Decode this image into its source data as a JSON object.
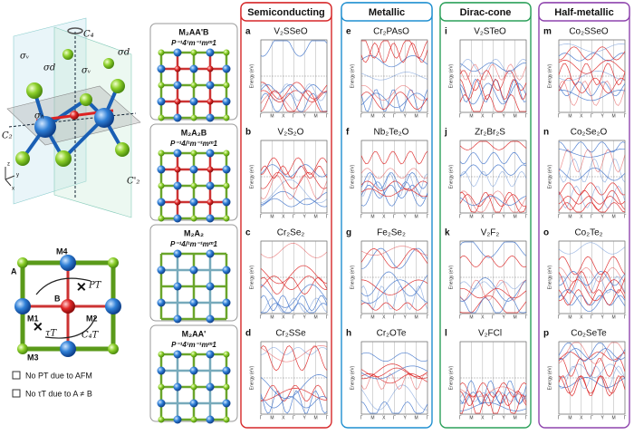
{
  "columns": [
    "Semiconducting",
    "Metallic",
    "Dirac-cone",
    "Half-metallic"
  ],
  "panels": [
    {
      "letter": "a",
      "name": "V₂SSeO"
    },
    {
      "letter": "b",
      "name": "V₂S₂O"
    },
    {
      "letter": "c",
      "name": "Cr₂Se₂"
    },
    {
      "letter": "d",
      "name": "Cr₂SSe"
    },
    {
      "letter": "e",
      "name": "Cr₂PAsO"
    },
    {
      "letter": "f",
      "name": "Nb₂Te₂O"
    },
    {
      "letter": "g",
      "name": "Fe₂Se₂"
    },
    {
      "letter": "h",
      "name": "Cr₂OTe"
    },
    {
      "letter": "i",
      "name": "V₂STeO"
    },
    {
      "letter": "j",
      "name": "Zr₂Br₂S"
    },
    {
      "letter": "k",
      "name": "V₂F₂"
    },
    {
      "letter": "l",
      "name": "V₂FCl"
    },
    {
      "letter": "m",
      "name": "Co₂SSeO"
    },
    {
      "letter": "n",
      "name": "Co₂Se₂O"
    },
    {
      "letter": "o",
      "name": "Co₂Te₂"
    },
    {
      "letter": "p",
      "name": "Co₂SeTe"
    }
  ],
  "band_axis": {
    "ylabel": "Energy (eV)",
    "kpoints": [
      "Γ",
      "M",
      "X",
      "Γ",
      "Y",
      "M",
      "Γ"
    ]
  },
  "structures": [
    {
      "formula": "M₂AA'B",
      "group": "P⁻¹4¹m⁻¹mᵐ1"
    },
    {
      "formula": "M₂A₂B",
      "group": "P⁻¹4/¹m⁻¹mᵐ1"
    },
    {
      "formula": "M₂A₂",
      "group": "P⁻¹4/¹m⁻¹mᵐ1"
    },
    {
      "formula": "M₂AA'",
      "group": "P⁻¹4¹m⁻¹mᵐ1"
    }
  ],
  "symmetry_labels": {
    "c4": "C₄",
    "sv": "σᵥ",
    "sd1": "σd",
    "sd2": "σd",
    "sv2": "σᵥ",
    "sh": "σₕ",
    "c2": "C₂",
    "c2p": "C'₂",
    "z": "z",
    "y": "y",
    "x": "x"
  },
  "lattice_labels": {
    "a": "A",
    "m4": "M4",
    "b": "B",
    "m1": "M1",
    "m2": "M2",
    "m3": "M3",
    "pt": "PT",
    "tt": "τT",
    "c4t": "C₄T"
  },
  "legend": [
    "No PT due to AFM",
    "No τT due to A ≠ B"
  ]
}
